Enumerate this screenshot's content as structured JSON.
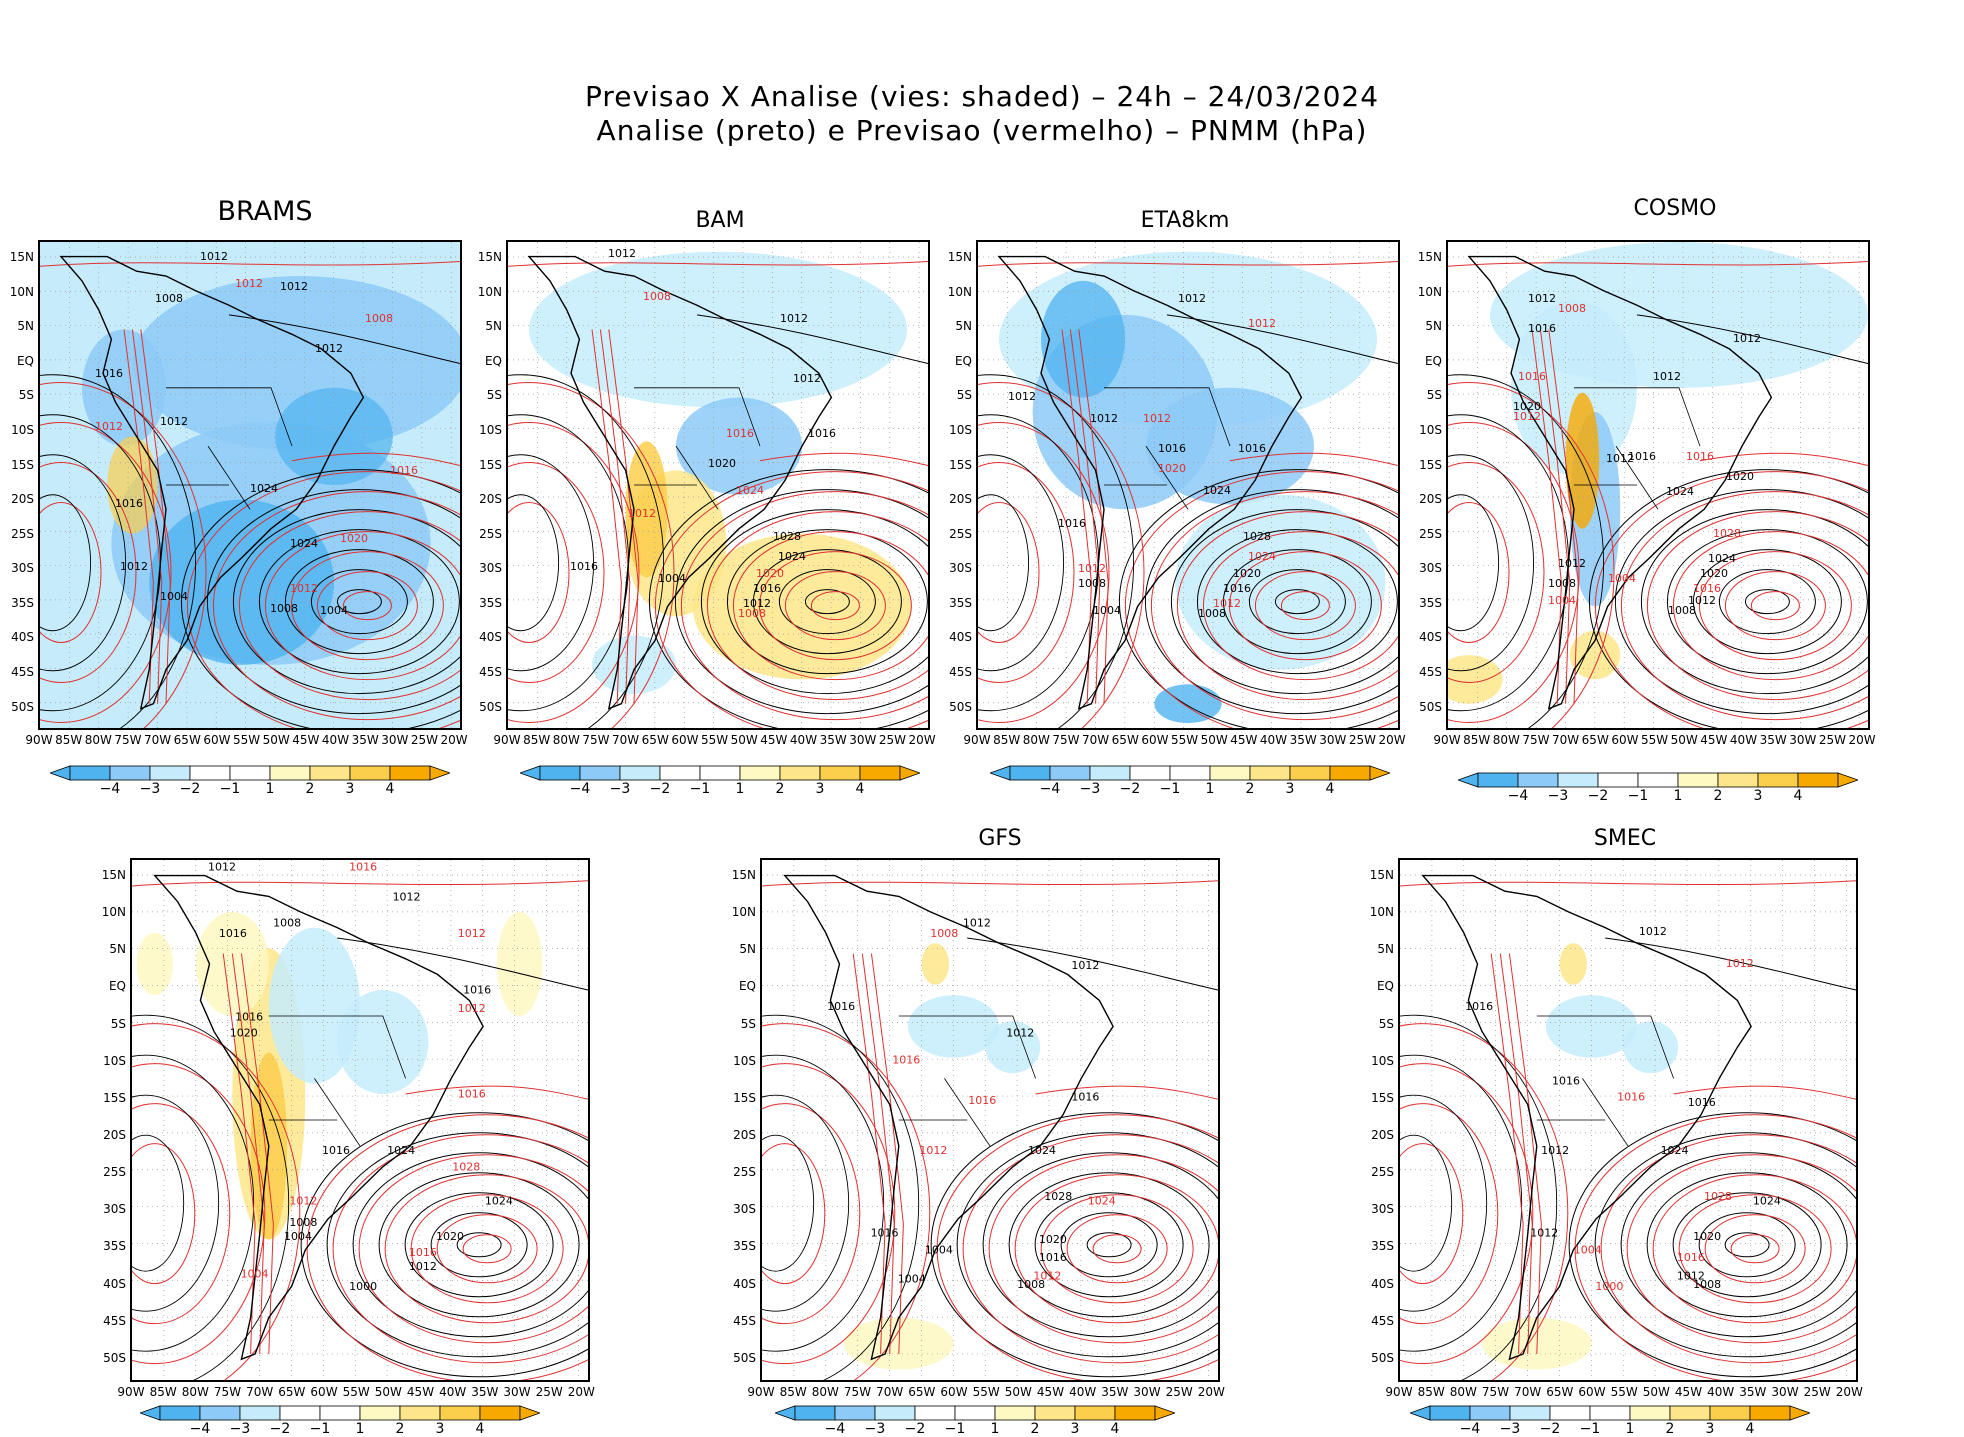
{
  "header": {
    "line1": "Previsao X Analise (vies: shaded) – 24h – 24/03/2024",
    "line2": "Analise (preto) e Previsao (vermelho) – PNMM (hPa)"
  },
  "colors": {
    "neg4": "#4fb3f0",
    "neg3": "#8dcaf7",
    "neg2": "#c6ecfb",
    "neg1": "#ffffff",
    "pos1": "#fef8c2",
    "pos2": "#fde68a",
    "pos3": "#fbcf4c",
    "pos4": "#f7a900",
    "analysis_contour": "#000000",
    "forecast_contour": "#e03030"
  },
  "colorbar": {
    "labels": [
      "−4",
      "−3",
      "−2",
      "−1",
      "1",
      "2",
      "3",
      "4"
    ]
  },
  "axes": {
    "lat_labels": [
      "15N",
      "10N",
      "5N",
      "EQ",
      "5S",
      "10S",
      "15S",
      "20S",
      "25S",
      "30S",
      "35S",
      "40S",
      "45S",
      "50S"
    ],
    "lon_labels": [
      "90W",
      "85W",
      "80W",
      "75W",
      "70W",
      "65W",
      "60W",
      "55W",
      "50W",
      "45W",
      "40W",
      "35W",
      "30W",
      "25W",
      "20W"
    ]
  },
  "panels": [
    {
      "name": "BRAMS",
      "bias": "strong-negative",
      "labels": [
        [
          "1012",
          160,
          18
        ],
        [
          "1012",
          195,
          45
        ],
        [
          "1008",
          115,
          60
        ],
        [
          "1012",
          240,
          48
        ],
        [
          "1008",
          325,
          80
        ],
        [
          "1012",
          275,
          110
        ],
        [
          "1016",
          55,
          135
        ],
        [
          "1012",
          55,
          188
        ],
        [
          "1012",
          120,
          183
        ],
        [
          "1016",
          75,
          265
        ],
        [
          "1016",
          350,
          232
        ],
        [
          "1024",
          210,
          250
        ],
        [
          "1024",
          250,
          305
        ],
        [
          "1020",
          300,
          300
        ],
        [
          "1012",
          80,
          328
        ],
        [
          "1004",
          120,
          358
        ],
        [
          "1012",
          250,
          350
        ],
        [
          "1008",
          230,
          370
        ],
        [
          "1004",
          280,
          372
        ]
      ]
    },
    {
      "name": "BAM",
      "bias": "mixed",
      "labels": [
        [
          "1012",
          100,
          15
        ],
        [
          "1008",
          135,
          58
        ],
        [
          "1012",
          272,
          80
        ],
        [
          "1012",
          285,
          140
        ],
        [
          "1016",
          218,
          195
        ],
        [
          "1016",
          300,
          195
        ],
        [
          "1020",
          200,
          225
        ],
        [
          "1024",
          228,
          252
        ],
        [
          "1028",
          265,
          298
        ],
        [
          "1024",
          270,
          318
        ],
        [
          "1020",
          248,
          335
        ],
        [
          "1016",
          245,
          350
        ],
        [
          "1012",
          235,
          365
        ],
        [
          "1008",
          230,
          375
        ],
        [
          "1016",
          62,
          328
        ],
        [
          "1004",
          150,
          340
        ],
        [
          "1012",
          120,
          275
        ]
      ]
    },
    {
      "name": "ETA8km",
      "bias": "negative",
      "labels": [
        [
          "1012",
          200,
          60
        ],
        [
          "1012",
          270,
          85
        ],
        [
          "1012",
          30,
          158
        ],
        [
          "1012",
          112,
          180
        ],
        [
          "1012",
          165,
          180
        ],
        [
          "1016",
          180,
          210
        ],
        [
          "1016",
          260,
          210
        ],
        [
          "1020",
          180,
          230
        ],
        [
          "1024",
          225,
          252
        ],
        [
          "1028",
          265,
          298
        ],
        [
          "1024",
          270,
          318
        ],
        [
          "1020",
          255,
          335
        ],
        [
          "1016",
          245,
          350
        ],
        [
          "1012",
          235,
          365
        ],
        [
          "1008",
          220,
          375
        ],
        [
          "1016",
          80,
          285
        ],
        [
          "1012",
          100,
          330
        ],
        [
          "1008",
          100,
          345
        ],
        [
          "1004",
          115,
          372
        ]
      ]
    },
    {
      "name": "COSMO",
      "bias": "mixed-negative",
      "labels": [
        [
          "1012",
          80,
          60
        ],
        [
          "1008",
          110,
          70
        ],
        [
          "1012",
          285,
          100
        ],
        [
          "1016",
          80,
          90
        ],
        [
          "1016",
          70,
          138
        ],
        [
          "1012",
          205,
          138
        ],
        [
          "1020",
          65,
          168
        ],
        [
          "1012",
          65,
          178
        ],
        [
          "1016",
          180,
          218
        ],
        [
          "1012",
          158,
          220
        ],
        [
          "1016",
          238,
          218
        ],
        [
          "1020",
          278,
          238
        ],
        [
          "1024",
          218,
          253
        ],
        [
          "1028",
          265,
          295
        ],
        [
          "1024",
          260,
          320
        ],
        [
          "1020",
          252,
          335
        ],
        [
          "1016",
          245,
          350
        ],
        [
          "1012",
          240,
          362
        ],
        [
          "1008",
          220,
          372
        ],
        [
          "1004",
          160,
          340
        ],
        [
          "1012",
          110,
          325
        ],
        [
          "1008",
          100,
          345
        ],
        [
          "1004",
          100,
          362
        ]
      ]
    },
    {
      "name": "",
      "bias": "positive-andes",
      "labels": [
        [
          "1012",
          70,
          10
        ],
        [
          "1016",
          200,
          10
        ],
        [
          "1012",
          240,
          38
        ],
        [
          "1008",
          130,
          62
        ],
        [
          "1012",
          300,
          72
        ],
        [
          "1016",
          80,
          72
        ],
        [
          "1016",
          305,
          125
        ],
        [
          "1012",
          300,
          142
        ],
        [
          "1016",
          95,
          150
        ],
        [
          "1020",
          90,
          165
        ],
        [
          "1016",
          300,
          222
        ],
        [
          "1016",
          175,
          275
        ],
        [
          "1024",
          235,
          275
        ],
        [
          "1028",
          295,
          290
        ],
        [
          "1024",
          325,
          322
        ],
        [
          "1020",
          280,
          355
        ],
        [
          "1016",
          255,
          370
        ],
        [
          "1012",
          255,
          383
        ],
        [
          "1004",
          140,
          355
        ],
        [
          "1012",
          145,
          322
        ],
        [
          "1008",
          145,
          342
        ],
        [
          "1000",
          200,
          402
        ],
        [
          "1004",
          100,
          390
        ]
      ]
    },
    {
      "name": "GFS",
      "bias": "light",
      "labels": [
        [
          "1012",
          185,
          62
        ],
        [
          "1008",
          155,
          72
        ],
        [
          "1012",
          285,
          102
        ],
        [
          "1016",
          60,
          140
        ],
        [
          "1016",
          120,
          190
        ],
        [
          "1012",
          225,
          165
        ],
        [
          "1016",
          285,
          225
        ],
        [
          "1016",
          190,
          228
        ],
        [
          "1024",
          245,
          275
        ],
        [
          "1028",
          260,
          318
        ],
        [
          "1024",
          300,
          322
        ],
        [
          "1020",
          255,
          358
        ],
        [
          "1016",
          255,
          375
        ],
        [
          "1012",
          250,
          392
        ],
        [
          "1008",
          235,
          400
        ],
        [
          "1004",
          150,
          368
        ],
        [
          "1012",
          145,
          275
        ],
        [
          "1016",
          100,
          352
        ],
        [
          "1004",
          125,
          395
        ]
      ]
    },
    {
      "name": "SMEC",
      "bias": "light",
      "labels": [
        [
          "1012",
          220,
          70
        ],
        [
          "1012",
          300,
          100
        ],
        [
          "1016",
          60,
          140
        ],
        [
          "1016",
          140,
          210
        ],
        [
          "1016",
          200,
          225
        ],
        [
          "1016",
          265,
          230
        ],
        [
          "1024",
          240,
          275
        ],
        [
          "1028",
          280,
          318
        ],
        [
          "1024",
          325,
          322
        ],
        [
          "1020",
          270,
          355
        ],
        [
          "1016",
          255,
          375
        ],
        [
          "1012",
          255,
          392
        ],
        [
          "1008",
          270,
          400
        ],
        [
          "1004",
          160,
          368
        ],
        [
          "1012",
          130,
          275
        ],
        [
          "1012",
          120,
          352
        ],
        [
          "1000",
          180,
          402
        ]
      ]
    }
  ]
}
